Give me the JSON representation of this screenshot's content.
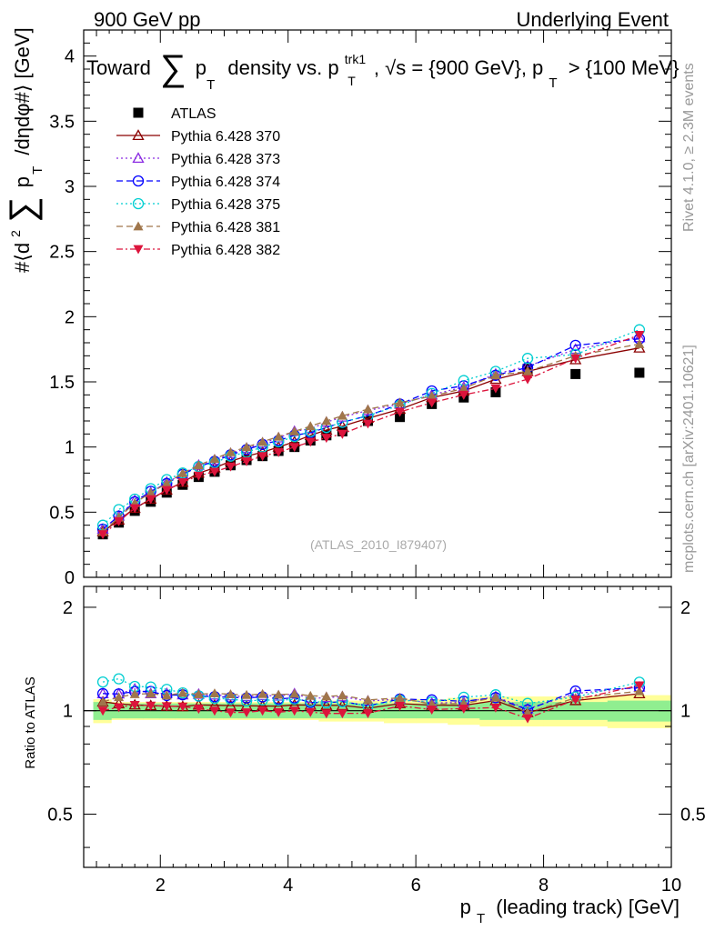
{
  "header": {
    "left": "900 GeV pp",
    "right": "Underlying Event"
  },
  "side": {
    "rivet": "Rivet 4.1.0, ≥ 2.3M events",
    "mcplots": "mcplots.cern.ch [arXiv:2401.10621]"
  },
  "colors": {
    "ATLAS": "#000000",
    "p370": "#8b0000",
    "p373": "#8a2be2",
    "p374": "#0000ff",
    "p375": "#00ced1",
    "p381": "#a0764b",
    "p382": "#dc143c",
    "band_green": "#90ee90",
    "band_yellow": "#ffff99"
  },
  "chart_data": {
    "type": "line",
    "title": "Toward ∑ p_T density vs. p_T^trk1, √s = {900 GeV}, p_T > {100 MeV}",
    "title_parts": {
      "toward": "Toward",
      "sum": "∑",
      "p": "p",
      "T": "T",
      "density": "density vs. p",
      "trk1": "trk1",
      "rest": ", √s = {900 GeV}, p",
      "gt": "> {100 MeV}"
    },
    "watermark": "(ATLAS_2010_I879407)",
    "xlabel": "p_T (leading track) [GeV]",
    "xlabel_parts": {
      "p": "p",
      "T": "T",
      "rest": "(leading track) [GeV]"
    },
    "ylabel": "#⟨d² ∑ p_T /dηdφ#⟩ [GeV]",
    "ylabel_parts": {
      "pre": "#⟨d",
      "sq": "2",
      "sum": "∑",
      "p": "p",
      "T": "T",
      "post": "/dηdφ#⟩ [GeV]"
    },
    "ratio_ylabel": "Ratio to ATLAS",
    "xlim": [
      0.8,
      10
    ],
    "ylim": [
      0,
      4.2
    ],
    "ratio_ylim": [
      0.35,
      2.3
    ],
    "x_ticks": [
      "2",
      "4",
      "6",
      "8",
      "10"
    ],
    "y_ticks": [
      "0",
      "0.5",
      "1",
      "1.5",
      "2",
      "2.5",
      "3",
      "3.5",
      "4"
    ],
    "ratio_ticks": [
      "0.5",
      "1",
      "2"
    ],
    "x": [
      1.1,
      1.35,
      1.6,
      1.85,
      2.1,
      2.35,
      2.6,
      2.85,
      3.1,
      3.35,
      3.6,
      3.85,
      4.1,
      4.35,
      4.6,
      4.85,
      5.25,
      5.75,
      6.25,
      6.75,
      7.25,
      7.75,
      8.5,
      9.5
    ],
    "atlas": [
      0.33,
      0.42,
      0.51,
      0.58,
      0.65,
      0.71,
      0.77,
      0.81,
      0.86,
      0.9,
      0.93,
      0.97,
      1.0,
      1.05,
      1.09,
      1.12,
      1.2,
      1.23,
      1.33,
      1.38,
      1.42,
      1.6,
      1.56,
      1.57
    ],
    "band_x_edges": [
      0.95,
      1.23,
      1.48,
      1.73,
      1.98,
      2.23,
      2.48,
      2.73,
      2.98,
      3.23,
      3.48,
      3.73,
      3.98,
      4.23,
      4.48,
      4.73,
      5.0,
      5.5,
      6.0,
      6.5,
      7.0,
      7.5,
      8.0,
      9.0,
      10.0
    ],
    "band_green": [
      0.06,
      0.05,
      0.05,
      0.05,
      0.05,
      0.05,
      0.05,
      0.05,
      0.05,
      0.05,
      0.05,
      0.05,
      0.05,
      0.05,
      0.05,
      0.05,
      0.05,
      0.05,
      0.05,
      0.05,
      0.06,
      0.06,
      0.06,
      0.07
    ],
    "band_yellow": [
      0.08,
      0.06,
      0.06,
      0.06,
      0.06,
      0.06,
      0.06,
      0.06,
      0.06,
      0.06,
      0.06,
      0.06,
      0.06,
      0.06,
      0.07,
      0.07,
      0.07,
      0.08,
      0.08,
      0.09,
      0.1,
      0.1,
      0.1,
      0.11
    ],
    "series": [
      {
        "name": "ATLAS",
        "key": "ATLAS",
        "marker": "square",
        "dash": "none",
        "values": [
          0.33,
          0.42,
          0.51,
          0.58,
          0.65,
          0.71,
          0.77,
          0.81,
          0.86,
          0.9,
          0.93,
          0.97,
          1.0,
          1.05,
          1.09,
          1.12,
          1.2,
          1.23,
          1.33,
          1.38,
          1.42,
          1.6,
          1.56,
          1.57
        ]
      },
      {
        "name": "Pythia 6.428 370",
        "key": "p370",
        "marker": "triangle-open",
        "dash": "solid",
        "values": [
          0.35,
          0.44,
          0.53,
          0.6,
          0.67,
          0.73,
          0.8,
          0.84,
          0.89,
          0.93,
          0.96,
          1.0,
          1.04,
          1.09,
          1.13,
          1.16,
          1.22,
          1.29,
          1.38,
          1.43,
          1.52,
          1.58,
          1.67,
          1.76
        ]
      },
      {
        "name": "Pythia 6.428 373",
        "key": "p373",
        "marker": "triangle-open",
        "dash": "dot",
        "values": [
          0.37,
          0.47,
          0.59,
          0.65,
          0.73,
          0.79,
          0.86,
          0.9,
          0.95,
          0.99,
          1.03,
          1.07,
          1.12,
          1.14,
          1.19,
          1.23,
          1.28,
          1.33,
          1.4,
          1.46,
          1.56,
          1.62,
          1.75,
          1.84
        ]
      },
      {
        "name": "Pythia 6.428 374",
        "key": "p374",
        "marker": "circle-open",
        "dash": "dash",
        "values": [
          0.37,
          0.47,
          0.58,
          0.66,
          0.72,
          0.79,
          0.85,
          0.89,
          0.94,
          0.98,
          1.02,
          1.05,
          1.09,
          1.11,
          1.15,
          1.19,
          1.24,
          1.33,
          1.43,
          1.47,
          1.55,
          1.61,
          1.78,
          1.83
        ]
      },
      {
        "name": "Pythia 6.428 375",
        "key": "p375",
        "marker": "circle-open",
        "dash": "dot",
        "values": [
          0.4,
          0.52,
          0.6,
          0.68,
          0.75,
          0.8,
          0.85,
          0.88,
          0.93,
          0.96,
          1.0,
          1.04,
          1.08,
          1.12,
          1.15,
          1.19,
          1.24,
          1.32,
          1.41,
          1.51,
          1.58,
          1.68,
          1.71,
          1.9
        ]
      },
      {
        "name": "Pythia 6.428 381",
        "key": "p381",
        "marker": "triangle-filled",
        "dash": "dash",
        "values": [
          0.35,
          0.46,
          0.57,
          0.65,
          0.72,
          0.8,
          0.86,
          0.91,
          0.96,
          1.0,
          1.04,
          1.08,
          1.12,
          1.16,
          1.2,
          1.24,
          1.29,
          1.34,
          1.39,
          1.45,
          1.55,
          1.58,
          1.7,
          1.79
        ]
      },
      {
        "name": "Pythia 6.428 382",
        "key": "p382",
        "marker": "triangle-down-filled",
        "dash": "dashdot",
        "values": [
          0.33,
          0.43,
          0.53,
          0.6,
          0.67,
          0.73,
          0.78,
          0.81,
          0.85,
          0.89,
          0.93,
          0.96,
          1.0,
          1.04,
          1.07,
          1.1,
          1.18,
          1.27,
          1.34,
          1.4,
          1.45,
          1.52,
          1.68,
          1.86
        ]
      }
    ]
  }
}
